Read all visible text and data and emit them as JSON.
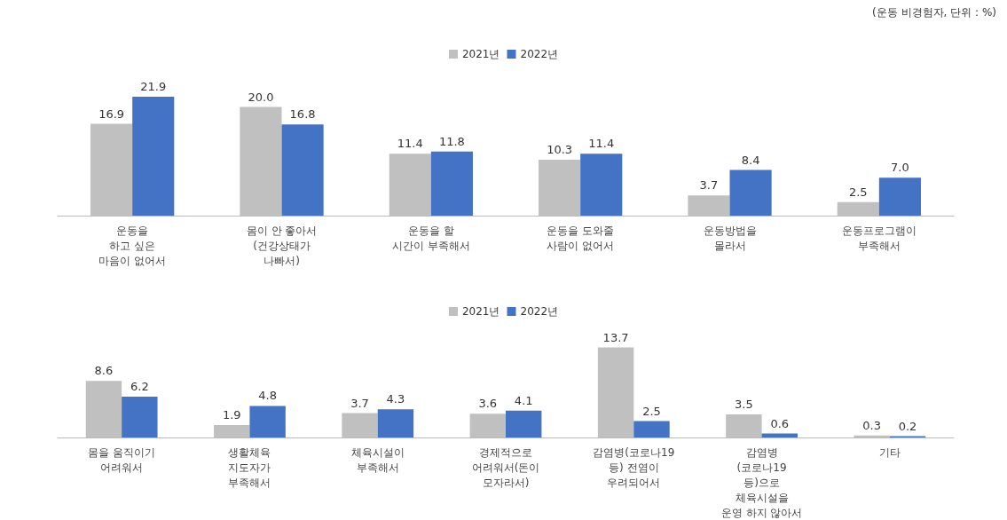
{
  "chart_data": [
    {
      "type": "bar",
      "annotations": [
        "(운동 비경험자, 단위 : %)"
      ],
      "categories": [
        "운동을\n하고 싶은\n마음이 없어서",
        "몸이 안 좋아서\n(건강상태가\n나빠서)",
        "운동을 할\n시간이 부족해서",
        "운동을 도와줄\n사람이 없어서",
        "운동방법을\n몰라서",
        "운동프로그램이\n부족해서"
      ],
      "series": [
        {
          "name": "2021년",
          "color": "#c0c0c0",
          "values": [
            16.9,
            20.0,
            11.4,
            10.3,
            3.7,
            2.5
          ],
          "value_labels": [
            "16.9",
            "20.0",
            "11.4",
            "10.3",
            "3.7",
            "2.5"
          ]
        },
        {
          "name": "2022년",
          "color": "#4472c4",
          "values": [
            21.9,
            16.8,
            11.8,
            11.4,
            8.4,
            7.0
          ],
          "value_labels": [
            "21.9",
            "16.8",
            "11.8",
            "11.4",
            "8.4",
            "7.0"
          ]
        }
      ],
      "legend": "top",
      "grid": false,
      "tick_labels": "x"
    },
    {
      "type": "bar",
      "categories": [
        "몸을 움직이기\n어려워서",
        "생활체육\n지도자가\n부족해서",
        "체육시설이\n부족해서",
        "경제적으로\n어려워서(돈이\n모자라서)",
        "감염병(코로나19\n등) 전염이\n우려되어서",
        "감염병\n(코로나19\n등)으로\n체육시설을\n운영 하지 않아서",
        "기타"
      ],
      "series": [
        {
          "name": "2021년",
          "color": "#c0c0c0",
          "values": [
            8.6,
            1.9,
            3.7,
            3.6,
            13.7,
            3.5,
            0.3
          ],
          "value_labels": [
            "8.6",
            "1.9",
            "3.7",
            "3.6",
            "13.7",
            "3.5",
            "0.3"
          ]
        },
        {
          "name": "2022년",
          "color": "#4472c4",
          "values": [
            6.2,
            4.8,
            4.3,
            4.1,
            2.5,
            0.6,
            0.2
          ],
          "value_labels": [
            "6.2",
            "4.8",
            "4.3",
            "4.1",
            "2.5",
            "0.6",
            "0.2"
          ]
        }
      ],
      "legend": "top",
      "grid": false,
      "tick_labels": "x"
    }
  ]
}
